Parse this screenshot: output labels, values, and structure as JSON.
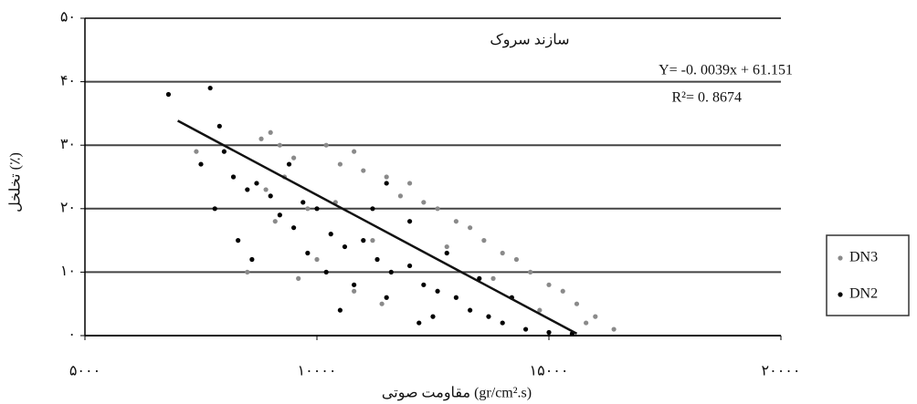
{
  "chart_data": {
    "type": "scatter",
    "title": "سازند سروک",
    "annotations": [
      "Y= -0. 0039x + 61.151",
      "R²= 0. 8674"
    ],
    "x_label": "مقاومت صوتی (gr/cm².s)",
    "y_label": "تخلخل (٪)",
    "xlim": [
      5000,
      20000
    ],
    "ylim": [
      0,
      50
    ],
    "xticks": [
      {
        "value": 5000,
        "label": "۵۰۰۰"
      },
      {
        "value": 10000,
        "label": "۱۰۰۰۰"
      },
      {
        "value": 15000,
        "label": "۱۵۰۰۰"
      },
      {
        "value": 20000,
        "label": "۲۰۰۰۰"
      }
    ],
    "yticks": [
      {
        "value": 0,
        "label": "۰"
      },
      {
        "value": 10,
        "label": "۱۰"
      },
      {
        "value": 20,
        "label": "۲۰"
      },
      {
        "value": 30,
        "label": "۳۰"
      },
      {
        "value": 40,
        "label": "۴۰"
      },
      {
        "value": 50,
        "label": "۵۰"
      }
    ],
    "grid": true,
    "legend": "right",
    "trendline": {
      "color": "#111111",
      "x": [
        7000,
        15600
      ],
      "y": [
        33.85,
        0.31
      ]
    },
    "series": [
      {
        "name": "DN3",
        "color": "#8a8a8a",
        "x": [
          8800,
          9000,
          9200,
          9500,
          9300,
          10200,
          10500,
          10800,
          11000,
          11500,
          11800,
          12000,
          12300,
          12600,
          13000,
          13300,
          13600,
          14000,
          14300,
          14600,
          15000,
          15300,
          15600,
          16000,
          16400,
          9100,
          9600,
          10000,
          10800,
          11400,
          8500,
          8900,
          9800,
          14800,
          15800,
          12800,
          13800,
          11200,
          10400,
          7400
        ],
        "values": [
          31,
          32,
          30,
          28,
          25,
          30,
          27,
          29,
          26,
          25,
          22,
          24,
          21,
          20,
          18,
          17,
          15,
          13,
          12,
          10,
          8,
          7,
          5,
          3,
          1,
          18,
          9,
          12,
          7,
          5,
          10,
          23,
          20,
          4,
          2,
          14,
          9,
          15,
          21,
          29
        ]
      },
      {
        "name": "DN2",
        "color": "#000000",
        "x": [
          6800,
          7700,
          7900,
          7500,
          8000,
          8200,
          8500,
          7800,
          8700,
          9000,
          9200,
          9500,
          9700,
          10000,
          10300,
          10600,
          11000,
          11300,
          11600,
          12000,
          12300,
          12600,
          13000,
          13300,
          13700,
          14000,
          14500,
          15000,
          15500,
          9800,
          10200,
          10800,
          11500,
          12500,
          8300,
          8600,
          11200,
          12000,
          12800,
          13500,
          14200,
          12200,
          10500,
          9400,
          11500
        ],
        "values": [
          38,
          39,
          33,
          27,
          29,
          25,
          23,
          20,
          24,
          22,
          19,
          17,
          21,
          20,
          16,
          14,
          15,
          12,
          10,
          11,
          8,
          7,
          6,
          4,
          3,
          2,
          1,
          0.5,
          0.3,
          13,
          10,
          8,
          6,
          3,
          15,
          12,
          20,
          18,
          13,
          9,
          6,
          2,
          4,
          27,
          24
        ]
      }
    ]
  }
}
